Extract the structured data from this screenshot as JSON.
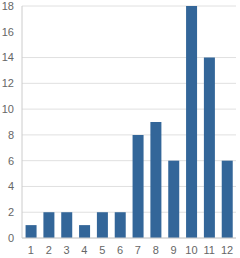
{
  "chart_data": {
    "type": "bar",
    "categories": [
      "1",
      "2",
      "3",
      "4",
      "5",
      "6",
      "7",
      "8",
      "9",
      "10",
      "11",
      "12"
    ],
    "values": [
      1,
      2,
      2,
      1,
      2,
      2,
      8,
      9,
      6,
      18,
      14,
      6
    ],
    "color": "#336699",
    "ylim": [
      0,
      18
    ],
    "yticks": [
      0,
      2,
      4,
      6,
      8,
      10,
      12,
      14,
      16,
      18
    ],
    "grid": true
  }
}
